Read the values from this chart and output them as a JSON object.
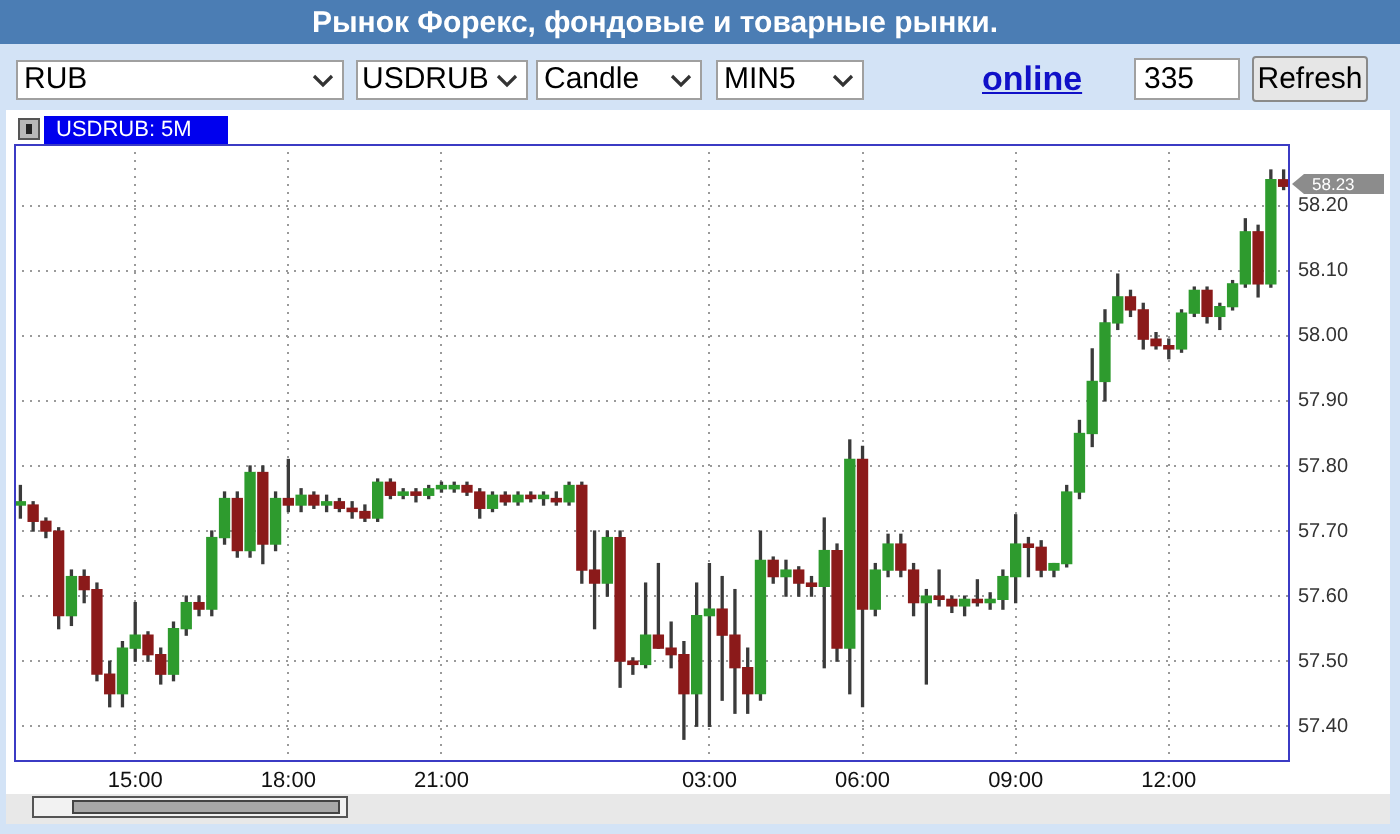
{
  "chart_data": {
    "type": "candlestick",
    "title": "Рынок Форекс, фондовые и товарные рынки.",
    "subtitle": "USDRUB: 5M",
    "annotations": [
      "RUB",
      "USDRUB",
      "Candle",
      "MIN5",
      "online",
      "335",
      "Refresh",
      "58.23"
    ],
    "categories": [
      null,
      null,
      null,
      null,
      null,
      null,
      null,
      null,
      null,
      "15:00",
      null,
      null,
      null,
      null,
      null,
      null,
      null,
      null,
      null,
      null,
      null,
      "18:00",
      null,
      null,
      null,
      null,
      null,
      null,
      null,
      null,
      null,
      null,
      null,
      "21:00",
      null,
      null,
      null,
      null,
      null,
      null,
      null,
      null,
      null,
      null,
      null,
      null,
      null,
      null,
      null,
      null,
      null,
      null,
      null,
      null,
      "03:00",
      null,
      null,
      null,
      null,
      null,
      null,
      null,
      null,
      null,
      null,
      null,
      "06:00",
      null,
      null,
      null,
      null,
      null,
      null,
      null,
      null,
      null,
      null,
      null,
      "09:00",
      null,
      null,
      null,
      null,
      null,
      null,
      null,
      null,
      null,
      null,
      null,
      "12:00",
      null,
      null,
      null,
      null,
      null,
      null,
      null,
      null,
      null
    ],
    "ohlc": [
      [
        57.74,
        57.77,
        57.72,
        57.745
      ],
      [
        57.74,
        57.745,
        57.7,
        57.715
      ],
      [
        57.715,
        57.72,
        57.69,
        57.7
      ],
      [
        57.7,
        57.705,
        57.55,
        57.57
      ],
      [
        57.57,
        57.64,
        57.555,
        57.63
      ],
      [
        57.63,
        57.64,
        57.59,
        57.61
      ],
      [
        57.61,
        57.62,
        57.47,
        57.48
      ],
      [
        57.48,
        57.5,
        57.43,
        57.45
      ],
      [
        57.45,
        57.53,
        57.43,
        57.52
      ],
      [
        57.52,
        57.59,
        57.5,
        57.54
      ],
      [
        57.54,
        57.545,
        57.5,
        57.51
      ],
      [
        57.51,
        57.52,
        57.465,
        57.48
      ],
      [
        57.48,
        57.56,
        57.47,
        57.55
      ],
      [
        57.55,
        57.6,
        57.54,
        57.59
      ],
      [
        57.59,
        57.6,
        57.57,
        57.58
      ],
      [
        57.58,
        57.7,
        57.57,
        57.69
      ],
      [
        57.69,
        57.76,
        57.68,
        57.75
      ],
      [
        57.75,
        57.76,
        57.66,
        57.67
      ],
      [
        57.67,
        57.8,
        57.66,
        57.79
      ],
      [
        57.79,
        57.8,
        57.65,
        57.68
      ],
      [
        57.68,
        57.76,
        57.67,
        57.75
      ],
      [
        57.75,
        57.81,
        57.73,
        57.74
      ],
      [
        57.74,
        57.765,
        57.73,
        57.755
      ],
      [
        57.755,
        57.76,
        57.735,
        57.74
      ],
      [
        57.74,
        57.755,
        57.73,
        57.745
      ],
      [
        57.745,
        57.75,
        57.73,
        57.735
      ],
      [
        57.735,
        57.745,
        57.72,
        57.73
      ],
      [
        57.73,
        57.74,
        57.715,
        57.72
      ],
      [
        57.72,
        57.78,
        57.715,
        57.775
      ],
      [
        57.775,
        57.78,
        57.75,
        57.755
      ],
      [
        57.755,
        57.765,
        57.75,
        57.76
      ],
      [
        57.76,
        57.765,
        57.745,
        57.755
      ],
      [
        57.755,
        57.77,
        57.75,
        57.765
      ],
      [
        57.765,
        57.775,
        57.76,
        57.77
      ],
      [
        57.765,
        57.775,
        57.76,
        57.77
      ],
      [
        57.77,
        57.775,
        57.755,
        57.76
      ],
      [
        57.76,
        57.765,
        57.72,
        57.735
      ],
      [
        57.735,
        57.76,
        57.73,
        57.755
      ],
      [
        57.755,
        57.76,
        57.74,
        57.745
      ],
      [
        57.745,
        57.76,
        57.74,
        57.755
      ],
      [
        57.755,
        57.76,
        57.745,
        57.75
      ],
      [
        57.75,
        57.76,
        57.74,
        57.755
      ],
      [
        57.75,
        57.76,
        57.74,
        57.745
      ],
      [
        57.745,
        57.775,
        57.74,
        57.77
      ],
      [
        57.77,
        57.775,
        57.62,
        57.64
      ],
      [
        57.64,
        57.7,
        57.55,
        57.62
      ],
      [
        57.62,
        57.7,
        57.6,
        57.69
      ],
      [
        57.69,
        57.7,
        57.46,
        57.5
      ],
      [
        57.5,
        57.505,
        57.48,
        57.495
      ],
      [
        57.495,
        57.62,
        57.49,
        57.54
      ],
      [
        57.54,
        57.65,
        57.52,
        57.52
      ],
      [
        57.52,
        57.56,
        57.49,
        57.51
      ],
      [
        57.51,
        57.53,
        57.38,
        57.45
      ],
      [
        57.45,
        57.62,
        57.4,
        57.57
      ],
      [
        57.57,
        57.65,
        57.4,
        57.58
      ],
      [
        57.58,
        57.63,
        57.44,
        57.54
      ],
      [
        57.54,
        57.61,
        57.42,
        57.49
      ],
      [
        57.49,
        57.52,
        57.42,
        57.45
      ],
      [
        57.45,
        57.7,
        57.44,
        57.655
      ],
      [
        57.655,
        57.66,
        57.62,
        57.63
      ],
      [
        57.63,
        57.655,
        57.6,
        57.64
      ],
      [
        57.64,
        57.645,
        57.6,
        57.62
      ],
      [
        57.62,
        57.63,
        57.6,
        57.615
      ],
      [
        57.615,
        57.72,
        57.49,
        57.67
      ],
      [
        57.67,
        57.68,
        57.5,
        57.52
      ],
      [
        57.52,
        57.84,
        57.45,
        57.81
      ],
      [
        57.81,
        57.83,
        57.43,
        57.58
      ],
      [
        57.58,
        57.65,
        57.57,
        57.64
      ],
      [
        57.64,
        57.695,
        57.63,
        57.68
      ],
      [
        57.68,
        57.695,
        57.63,
        57.64
      ],
      [
        57.64,
        57.65,
        57.57,
        57.59
      ],
      [
        57.59,
        57.61,
        57.465,
        57.6
      ],
      [
        57.6,
        57.64,
        57.585,
        57.595
      ],
      [
        57.595,
        57.6,
        57.575,
        57.585
      ],
      [
        57.585,
        57.6,
        57.57,
        57.595
      ],
      [
        57.595,
        57.625,
        57.585,
        57.59
      ],
      [
        57.59,
        57.605,
        57.58,
        57.595
      ],
      [
        57.595,
        57.64,
        57.58,
        57.63
      ],
      [
        57.63,
        57.725,
        57.59,
        57.68
      ],
      [
        57.68,
        57.69,
        57.63,
        57.675
      ],
      [
        57.675,
        57.685,
        57.63,
        57.64
      ],
      [
        57.64,
        57.65,
        57.63,
        57.65
      ],
      [
        57.65,
        57.77,
        57.645,
        57.76
      ],
      [
        57.76,
        57.87,
        57.75,
        57.85
      ],
      [
        57.85,
        57.98,
        57.83,
        57.93
      ],
      [
        57.93,
        58.04,
        57.9,
        58.02
      ],
      [
        58.02,
        58.095,
        58.01,
        58.06
      ],
      [
        58.06,
        58.07,
        58.03,
        58.04
      ],
      [
        58.04,
        58.05,
        57.98,
        57.995
      ],
      [
        57.995,
        58.005,
        57.98,
        57.985
      ],
      [
        57.985,
        57.995,
        57.965,
        57.98
      ],
      [
        57.98,
        58.04,
        57.975,
        58.035
      ],
      [
        58.035,
        58.075,
        58.03,
        58.07
      ],
      [
        58.07,
        58.075,
        58.02,
        58.03
      ],
      [
        58.03,
        58.05,
        58.01,
        58.045
      ],
      [
        58.045,
        58.085,
        58.04,
        58.08
      ],
      [
        58.08,
        58.18,
        58.075,
        58.16
      ],
      [
        58.16,
        58.17,
        58.06,
        58.08
      ],
      [
        58.08,
        58.255,
        58.075,
        58.24
      ],
      [
        58.24,
        58.255,
        58.225,
        58.23
      ]
    ],
    "color": "#3a3a3a",
    "colors": [
      "#2e9b2e",
      "#8b1a1a",
      "#8b1a1a",
      "#8b1a1a",
      "#2e9b2e",
      "#8b1a1a",
      "#8b1a1a",
      "#8b1a1a",
      "#2e9b2e",
      "#2e9b2e",
      "#8b1a1a",
      "#8b1a1a",
      "#2e9b2e",
      "#2e9b2e",
      "#8b1a1a",
      "#2e9b2e",
      "#2e9b2e",
      "#8b1a1a",
      "#2e9b2e",
      "#8b1a1a",
      "#2e9b2e",
      "#8b1a1a",
      "#2e9b2e",
      "#8b1a1a",
      "#2e9b2e",
      "#8b1a1a",
      "#8b1a1a",
      "#8b1a1a",
      "#2e9b2e",
      "#8b1a1a",
      "#2e9b2e",
      "#8b1a1a",
      "#2e9b2e",
      "#2e9b2e",
      "#2e9b2e",
      "#8b1a1a",
      "#8b1a1a",
      "#2e9b2e",
      "#8b1a1a",
      "#2e9b2e",
      "#8b1a1a",
      "#2e9b2e",
      "#8b1a1a",
      "#2e9b2e",
      "#8b1a1a",
      "#8b1a1a",
      "#2e9b2e",
      "#8b1a1a",
      "#8b1a1a",
      "#2e9b2e",
      "#8b1a1a",
      "#8b1a1a",
      "#8b1a1a",
      "#2e9b2e",
      "#2e9b2e",
      "#8b1a1a",
      "#8b1a1a",
      "#8b1a1a",
      "#2e9b2e",
      "#8b1a1a",
      "#2e9b2e",
      "#8b1a1a",
      "#8b1a1a",
      "#2e9b2e",
      "#8b1a1a",
      "#2e9b2e",
      "#8b1a1a",
      "#2e9b2e",
      "#2e9b2e",
      "#8b1a1a",
      "#8b1a1a",
      "#2e9b2e",
      "#8b1a1a",
      "#8b1a1a",
      "#2e9b2e",
      "#8b1a1a",
      "#2e9b2e",
      "#2e9b2e",
      "#2e9b2e",
      "#8b1a1a",
      "#8b1a1a",
      "#2e9b2e",
      "#2e9b2e",
      "#2e9b2e",
      "#2e9b2e",
      "#2e9b2e",
      "#2e9b2e",
      "#8b1a1a",
      "#8b1a1a",
      "#8b1a1a",
      "#8b1a1a",
      "#2e9b2e",
      "#2e9b2e",
      "#8b1a1a",
      "#2e9b2e",
      "#2e9b2e",
      "#2e9b2e",
      "#8b1a1a",
      "#2e9b2e",
      "#8b1a1a"
    ],
    "ylim": [
      57.345,
      58.295
    ],
    "yticks": [
      {
        "value": 57.4,
        "label": "57.40"
      },
      {
        "value": 57.5,
        "label": "57.50"
      },
      {
        "value": 57.6,
        "label": "57.60"
      },
      {
        "value": 57.7,
        "label": "57.70"
      },
      {
        "value": 57.8,
        "label": "57.80"
      },
      {
        "value": 57.9,
        "label": "57.90"
      },
      {
        "value": 58.0,
        "label": "58.00"
      },
      {
        "value": 58.1,
        "label": "58.10"
      },
      {
        "value": 58.2,
        "label": "58.20"
      }
    ],
    "grid": true
  }
}
